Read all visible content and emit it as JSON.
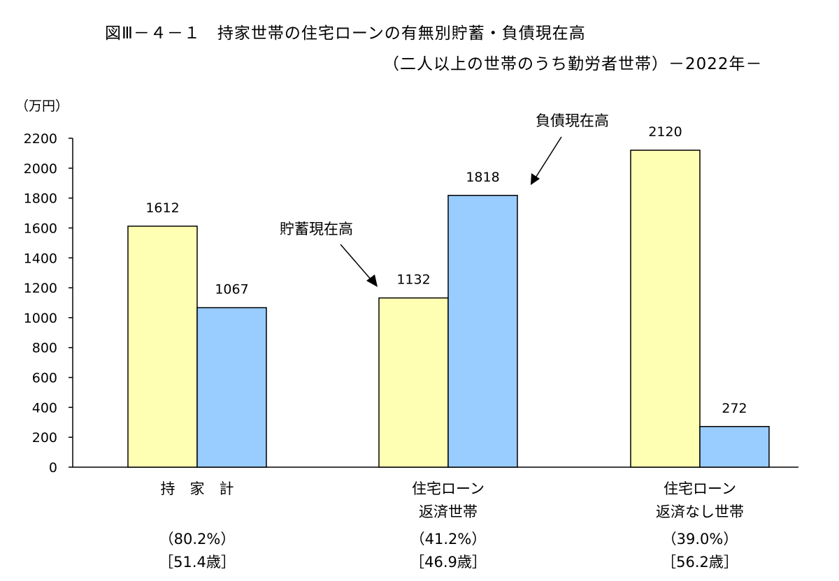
{
  "title_line1": "図Ⅲ－４－１　持家世帯の住宅ローンの有無別貯蓄・負債現在高",
  "title_line2": "（二人以上の世帯のうち勤労者世帯）－2022年－",
  "chart_data": {
    "type": "bar",
    "yunit": "（万円）",
    "ylim": [
      0,
      2200
    ],
    "yticks": [
      0,
      200,
      400,
      600,
      800,
      1000,
      1200,
      1400,
      1600,
      1800,
      2000,
      2200
    ],
    "grid": false,
    "categories": [
      {
        "label_lines": [
          "持　家　計"
        ],
        "share": "（80.2%）",
        "age": "［51.4歳］"
      },
      {
        "label_lines": [
          "住宅ローン",
          "返済世帯"
        ],
        "share": "（41.2%）",
        "age": "［46.9歳］"
      },
      {
        "label_lines": [
          "住宅ローン",
          "返済なし世帯"
        ],
        "share": "（39.0%）",
        "age": "［56.2歳］"
      }
    ],
    "series": [
      {
        "name": "貯蓄現在高",
        "color": "#ffffb3",
        "values": [
          1612,
          1132,
          2120
        ]
      },
      {
        "name": "負債現在高",
        "color": "#99ccff",
        "values": [
          1067,
          1818,
          272
        ]
      }
    ]
  }
}
